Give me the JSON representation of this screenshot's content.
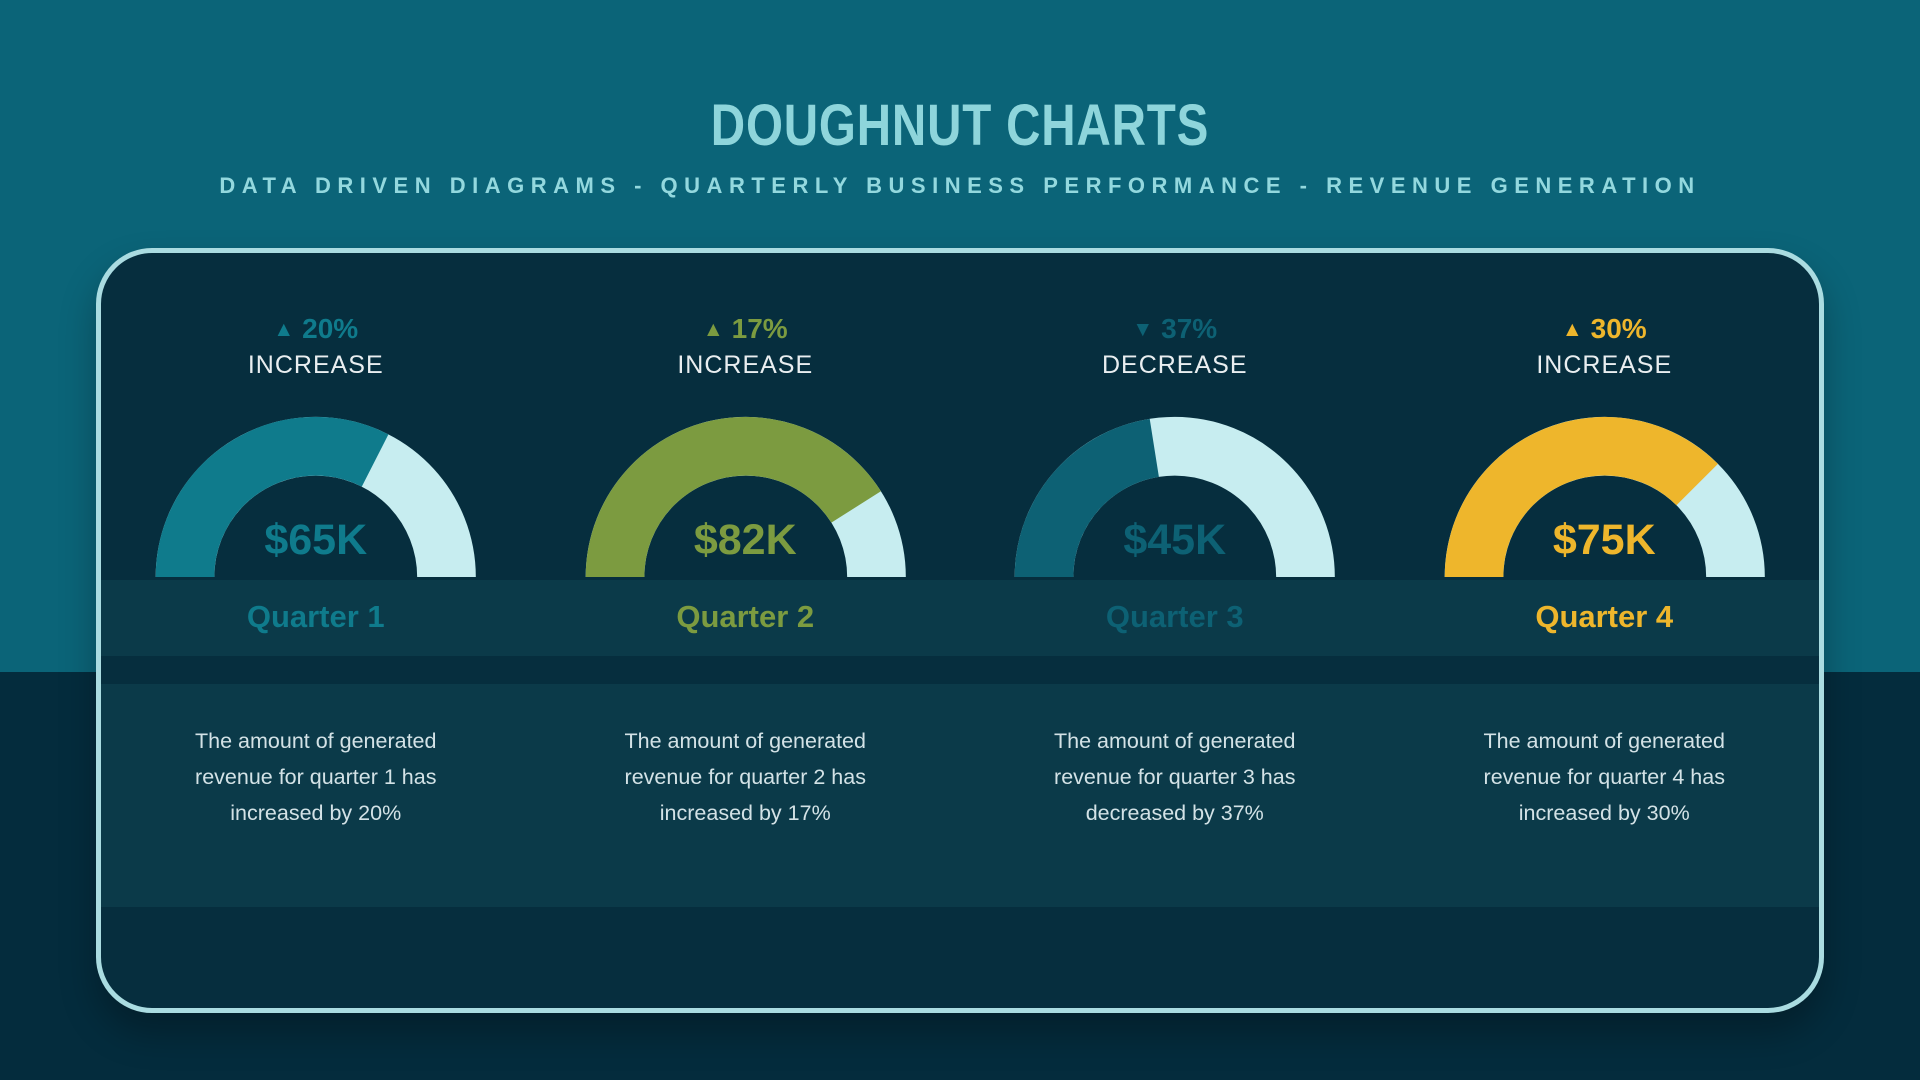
{
  "page": {
    "title": "DOUGHNUT CHARTS",
    "subtitle": "DATA DRIVEN DIAGRAMS - QUARTERLY BUSINESS PERFORMANCE - REVENUE GENERATION"
  },
  "icons": {
    "arrow_up_glyph": "▲",
    "arrow_down_glyph": "▼"
  },
  "colors": {
    "page_top": "#0B6478",
    "page_bottom": "#042C3D",
    "card_bg": "#062E3E",
    "band_bg": "#0B3A49",
    "card_border": "#AADCE1",
    "title_text": "#8ED5DB",
    "subtitle_text": "#93D8DE",
    "white_text": "#E9EEF0",
    "desc_text": "#D3E2E6",
    "gauge_track": "#C7EDF0"
  },
  "chart_data": {
    "type": "pie",
    "subtype": "semicircle-doughnut-gauge",
    "unit": "USD thousands",
    "max_value": 100,
    "legend_position": "none",
    "charts": [
      {
        "label": "Quarter 1",
        "value": 65,
        "value_label": "$65K",
        "change_label": "20%",
        "direction": "increase",
        "direction_label": "INCREASE",
        "color": "#0F7B8C",
        "description": "The amount of generated revenue for quarter 1 has increased by 20%"
      },
      {
        "label": "Quarter 2",
        "value": 82,
        "value_label": "$82K",
        "change_label": "17%",
        "direction": "increase",
        "direction_label": "INCREASE",
        "color": "#7C9B40",
        "description": "The amount of generated revenue for quarter 2 has increased by 17%"
      },
      {
        "label": "Quarter 3",
        "value": 45,
        "value_label": "$45K",
        "change_label": "37%",
        "direction": "decrease",
        "direction_label": "DECREASE",
        "color": "#0D6174",
        "description": "The amount of generated revenue for quarter 3 has decreased by 37%"
      },
      {
        "label": "Quarter 4",
        "value": 75,
        "value_label": "$75K",
        "change_label": "30%",
        "direction": "increase",
        "direction_label": "INCREASE",
        "color": "#EEB62C",
        "description": "The amount of generated revenue for quarter 4 has increased by 30%"
      }
    ]
  }
}
